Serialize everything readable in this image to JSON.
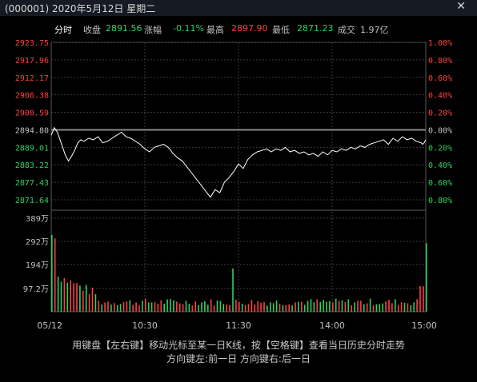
{
  "window": {
    "title": "(000001) 2020年5月12日 星期二",
    "close_icon": "close-icon",
    "colors": {
      "bg": "#000000",
      "up": "#ff4040",
      "down": "#30d060",
      "price_line": "#ffffff",
      "grid": "#3a3a3a",
      "neutral": "#c0c0c0"
    }
  },
  "info": {
    "tab": "分时",
    "close_label": "收盘",
    "close_value": "2891.56",
    "change_label": "涨幅",
    "change_value": "-0.11%",
    "high_label": "最高",
    "high_value": "2897.90",
    "low_label": "最低",
    "low_value": "2871.23",
    "turnover_label": "成交",
    "turnover_value": "1.97亿"
  },
  "chart_data": {
    "type": "line",
    "prev_close": 2894.8,
    "price_ticks": [
      "2923.75",
      "2917.96",
      "2912.17",
      "2906.38",
      "2900.59",
      "2894.80",
      "2889.01",
      "2883.22",
      "2877.43",
      "2871.64"
    ],
    "pct_ticks": [
      "1.00%",
      "0.80%",
      "0.60%",
      "0.40%",
      "0.20%",
      "0.00%",
      "0.20%",
      "0.40%",
      "0.60%",
      "0.80%"
    ],
    "volume_ticks": [
      "389万",
      "292万",
      "194万",
      "97.2万"
    ],
    "volume_max": 389,
    "time_ticks": [
      "05/12",
      "10:30",
      "11:30",
      "14:00",
      "15:00"
    ],
    "price_range": [
      2871.64,
      2923.75
    ],
    "grid": true,
    "price_series": {
      "x": [
        0,
        2,
        4,
        6,
        8,
        9,
        11,
        13,
        15,
        17,
        19,
        21,
        24,
        27,
        30,
        33,
        36,
        39,
        42,
        45,
        48,
        51,
        54,
        57,
        60,
        63,
        66,
        69,
        72,
        75,
        78,
        81,
        84,
        87,
        90,
        93,
        96,
        99,
        102,
        105,
        108,
        111,
        114,
        117,
        120,
        123,
        126,
        129,
        132,
        135,
        138,
        141,
        144,
        147,
        150,
        153,
        156,
        159,
        162,
        165,
        168,
        171,
        174,
        177,
        180,
        183,
        186,
        189,
        192,
        195,
        198,
        201,
        204,
        207,
        210,
        213,
        216,
        219,
        222,
        225,
        228,
        231,
        234,
        237,
        238,
        239,
        240
      ],
      "y": [
        2893.0,
        2895.5,
        2894.0,
        2891.0,
        2888.0,
        2886.5,
        2884.5,
        2886.0,
        2888.0,
        2890.5,
        2891.5,
        2891.0,
        2892.0,
        2891.5,
        2892.5,
        2890.5,
        2891.0,
        2892.0,
        2893.0,
        2894.0,
        2892.5,
        2892.0,
        2891.0,
        2890.0,
        2888.5,
        2887.5,
        2889.0,
        2889.5,
        2890.0,
        2889.0,
        2887.0,
        2885.5,
        2884.5,
        2882.5,
        2880.5,
        2878.5,
        2876.5,
        2874.5,
        2872.5,
        2875.0,
        2874.0,
        2877.5,
        2879.0,
        2881.0,
        2883.5,
        2882.0,
        2885.0,
        2886.5,
        2887.5,
        2888.0,
        2888.5,
        2887.5,
        2888.5,
        2888.0,
        2889.0,
        2887.5,
        2888.0,
        2887.0,
        2887.5,
        2886.5,
        2887.0,
        2886.0,
        2887.5,
        2886.5,
        2888.0,
        2887.5,
        2888.5,
        2888.0,
        2889.0,
        2888.5,
        2889.5,
        2889.0,
        2890.0,
        2890.5,
        2891.0,
        2891.5,
        2890.0,
        2892.0,
        2891.0,
        2892.5,
        2891.5,
        2892.0,
        2891.0,
        2890.5,
        2890.0,
        2890.5,
        2891.56
      ]
    }
  },
  "footer": {
    "line1": "用键盘【左右键】移动光标至某一日K线，按【空格键】查看当日历史分时走势",
    "line2": "方向键左:前一日   方向键右:后一日"
  }
}
